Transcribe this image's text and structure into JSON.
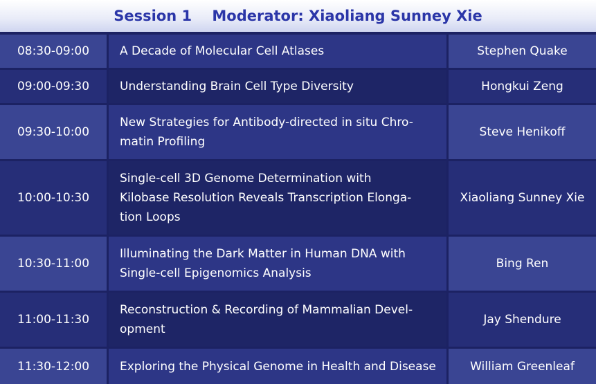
{
  "header": {
    "session": "Session 1",
    "moderator": "Moderator: Xiaoliang Sunney Xie"
  },
  "rows": [
    {
      "time": "08:30-09:00",
      "title": "A Decade of Molecular Cell Atlases",
      "speaker": "Stephen Quake"
    },
    {
      "time": "09:00-09:30",
      "title": "Understanding Brain Cell Type Diversity",
      "speaker": "Hongkui Zeng"
    },
    {
      "time": "09:30-10:00",
      "title": "New Strategies for Antibody-directed in situ Chro-\nmatin Profiling",
      "speaker": "Steve Henikoff"
    },
    {
      "time": "10:00-10:30",
      "title": "Single-cell 3D Genome Determination with\nKilobase Resolution Reveals Transcription Elonga-\ntion Loops",
      "speaker": "Xiaoliang Sunney Xie"
    },
    {
      "time": "10:30-11:00",
      "title": "Illuminating the Dark Matter in Human DNA with\nSingle-cell Epigenomics Analysis",
      "speaker": "Bing Ren"
    },
    {
      "time": "11:00-11:30",
      "title": "Reconstruction & Recording of Mammalian Devel-\nopment",
      "speaker": "Jay Shendure"
    },
    {
      "time": "11:30-12:00",
      "title": "Exploring the Physical Genome in Health and Disease",
      "speaker": "William Greenleaf"
    }
  ]
}
